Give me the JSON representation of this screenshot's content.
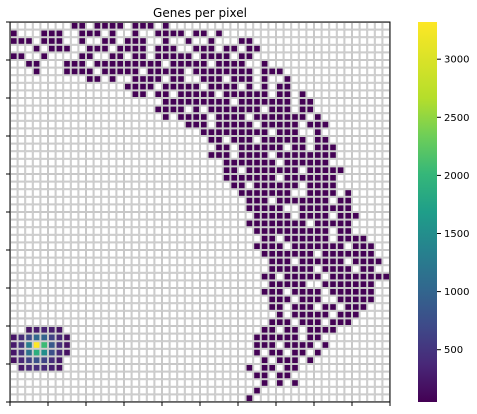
{
  "chart_data": {
    "type": "heatmap",
    "title": "Genes per pixel",
    "xlabel": "",
    "ylabel": "",
    "grid": true,
    "colormap": "viridis",
    "empty_cell_color": "#ffffff",
    "grid_color": "#c8c8c8",
    "x_ticks_shown": false,
    "y_ticks_shown": false,
    "colorbar": {
      "vmin": 50,
      "vmax": 3320,
      "ticks": [
        500,
        1000,
        1500,
        2000,
        2500,
        3000
      ],
      "tick_labels": [
        "500",
        "1000",
        "1500",
        "2000",
        "2500",
        "3000"
      ],
      "position": "right"
    },
    "grid_size": {
      "cols": 50,
      "rows": 50
    },
    "value_runs_note": "",
    "rows": [
      [
        [
          8,
          9
        ],
        [
          11,
          14
        ],
        [
          16,
          18
        ],
        [
          20,
          20
        ]
      ],
      [
        [
          0,
          0
        ],
        [
          4,
          6
        ],
        [
          9,
          11
        ],
        [
          13,
          13
        ],
        [
          16,
          16
        ],
        [
          19,
          22
        ],
        [
          24,
          25
        ],
        [
          27,
          27
        ]
      ],
      [
        [
          0,
          2
        ],
        [
          4,
          6
        ],
        [
          9,
          9
        ],
        [
          12,
          13
        ],
        [
          15,
          17
        ],
        [
          20,
          20
        ],
        [
          23,
          23
        ],
        [
          26,
          26
        ],
        [
          30,
          31
        ]
      ],
      [
        [
          3,
          3
        ],
        [
          5,
          7
        ],
        [
          10,
          12
        ],
        [
          14,
          17
        ],
        [
          19,
          21
        ],
        [
          24,
          26
        ],
        [
          28,
          29
        ],
        [
          31,
          32
        ]
      ],
      [
        [
          0,
          1
        ],
        [
          4,
          4
        ],
        [
          9,
          10
        ],
        [
          13,
          14
        ],
        [
          16,
          17
        ],
        [
          19,
          23
        ],
        [
          25,
          28
        ],
        [
          30,
          31
        ]
      ],
      [
        [
          2,
          3
        ],
        [
          7,
          9
        ],
        [
          11,
          19
        ],
        [
          21,
          25
        ],
        [
          27,
          30
        ],
        [
          33,
          33
        ]
      ],
      [
        [
          3,
          3
        ],
        [
          7,
          10
        ],
        [
          12,
          16
        ],
        [
          18,
          22
        ],
        [
          24,
          31
        ],
        [
          33,
          35
        ]
      ],
      [
        [
          10,
          11
        ],
        [
          13,
          13
        ],
        [
          16,
          19
        ],
        [
          21,
          22
        ],
        [
          25,
          27
        ],
        [
          29,
          31
        ],
        [
          33,
          33
        ],
        [
          36,
          36
        ]
      ],
      [
        [
          15,
          18
        ],
        [
          20,
          24
        ],
        [
          26,
          29
        ],
        [
          31,
          31
        ],
        [
          33,
          33
        ],
        [
          35,
          36
        ]
      ],
      [
        [
          16,
          17
        ],
        [
          19,
          20
        ],
        [
          22,
          26
        ],
        [
          28,
          33
        ],
        [
          35,
          36
        ],
        [
          38,
          38
        ]
      ],
      [
        [
          20,
          28
        ],
        [
          30,
          36
        ],
        [
          38,
          39
        ]
      ],
      [
        [
          19,
          22
        ],
        [
          24,
          24
        ],
        [
          26,
          32
        ],
        [
          34,
          36
        ],
        [
          38,
          39
        ]
      ],
      [
        [
          20,
          20
        ],
        [
          22,
          25
        ],
        [
          27,
          30
        ],
        [
          32,
          38
        ],
        [
          40,
          40
        ]
      ],
      [
        [
          23,
          25
        ],
        [
          27,
          31
        ],
        [
          33,
          37
        ],
        [
          39,
          41
        ]
      ],
      [
        [
          25,
          33
        ],
        [
          35,
          37
        ],
        [
          40,
          40
        ]
      ],
      [
        [
          26,
          27
        ],
        [
          29,
          31
        ],
        [
          33,
          38
        ],
        [
          40,
          41
        ]
      ],
      [
        [
          27,
          28
        ],
        [
          30,
          35
        ],
        [
          37,
          38
        ],
        [
          40,
          42
        ]
      ],
      [
        [
          26,
          28
        ],
        [
          30,
          33
        ],
        [
          35,
          42
        ]
      ],
      [
        [
          28,
          34
        ],
        [
          36,
          41
        ]
      ],
      [
        [
          28,
          29
        ],
        [
          31,
          37
        ],
        [
          39,
          43
        ]
      ],
      [
        [
          28,
          34
        ],
        [
          36,
          42
        ]
      ],
      [
        [
          29,
          30
        ],
        [
          32,
          37
        ],
        [
          39,
          42
        ]
      ],
      [
        [
          30,
          36
        ],
        [
          39,
          42
        ],
        [
          44,
          44
        ]
      ],
      [
        [
          31,
          33
        ],
        [
          35,
          41
        ],
        [
          43,
          44
        ]
      ],
      [
        [
          31,
          35
        ],
        [
          38,
          44
        ]
      ],
      [
        [
          32,
          36
        ],
        [
          38,
          41
        ],
        [
          43,
          45
        ]
      ],
      [
        [
          31,
          38
        ],
        [
          40,
          44
        ]
      ],
      [
        [
          32,
          41
        ],
        [
          43,
          44
        ]
      ],
      [
        [
          33,
          34
        ],
        [
          36,
          41
        ],
        [
          43,
          46
        ]
      ],
      [
        [
          32,
          35
        ],
        [
          37,
          43
        ],
        [
          45,
          47
        ]
      ],
      [
        [
          33,
          39
        ],
        [
          41,
          47
        ]
      ],
      [
        [
          34,
          36
        ],
        [
          38,
          43
        ],
        [
          45,
          48
        ]
      ],
      [
        [
          34,
          39
        ],
        [
          41,
          44
        ],
        [
          46,
          47
        ]
      ],
      [
        [
          33,
          34
        ],
        [
          36,
          40
        ],
        [
          42,
          49
        ]
      ],
      [
        [
          34,
          38
        ],
        [
          41,
          47
        ]
      ],
      [
        [
          33,
          35
        ],
        [
          37,
          40
        ],
        [
          42,
          47
        ]
      ],
      [
        [
          34,
          36
        ],
        [
          38,
          40
        ],
        [
          43,
          47
        ]
      ],
      [
        [
          34,
          35
        ],
        [
          37,
          39
        ],
        [
          41,
          42
        ],
        [
          44,
          46
        ]
      ],
      [
        [
          35,
          35
        ],
        [
          37,
          41
        ],
        [
          43,
          45
        ]
      ],
      [
        [
          34,
          36
        ],
        [
          38,
          40
        ],
        [
          42,
          44
        ]
      ],
      [
        [
          33,
          34
        ],
        [
          36,
          37
        ],
        [
          39,
          42
        ]
      ],
      [
        [
          32,
          37
        ],
        [
          39,
          40
        ]
      ],
      [
        [
          32,
          34
        ],
        [
          36,
          39
        ],
        [
          41,
          41
        ]
      ],
      [
        [
          32,
          32
        ],
        [
          34,
          35
        ],
        [
          37,
          38
        ],
        [
          40,
          40
        ]
      ],
      [
        [
          33,
          33
        ],
        [
          35,
          37
        ],
        [
          39,
          39
        ]
      ],
      [
        [
          31,
          31
        ],
        [
          33,
          34
        ],
        [
          36,
          37
        ]
      ],
      [
        [
          32,
          33
        ],
        [
          35,
          36
        ]
      ],
      [
        [
          33,
          33
        ],
        [
          35,
          35
        ],
        [
          37,
          37
        ]
      ],
      [
        [
          32,
          32
        ]
      ],
      [
        [
          31,
          31
        ]
      ]
    ],
    "hotspot": {
      "cells": [
        [
          41,
          [
            0,
            7
          ]
        ],
        [
          42,
          [
            0,
            7
          ]
        ],
        [
          43,
          [
            0,
            7
          ]
        ],
        [
          44,
          [
            0,
            6
          ]
        ],
        [
          45,
          [
            1,
            6
          ]
        ],
        [
          40,
          [
            2,
            6
          ]
        ]
      ],
      "values": {
        "41": [
          210,
          420,
          700,
          1050,
          980,
          620,
          360,
          180
        ],
        "42": [
          260,
          520,
          1300,
          3320,
          2050,
          860,
          430,
          200
        ],
        "43": [
          230,
          480,
          1150,
          1900,
          1500,
          760,
          380,
          190
        ],
        "44": [
          180,
          360,
          620,
          800,
          640,
          420,
          240
        ],
        "45": [
          260,
          380,
          440,
          390,
          300,
          190
        ],
        "40": [
          200,
          280,
          330,
          290,
          210
        ]
      }
    },
    "default_cell_value": 60
  }
}
